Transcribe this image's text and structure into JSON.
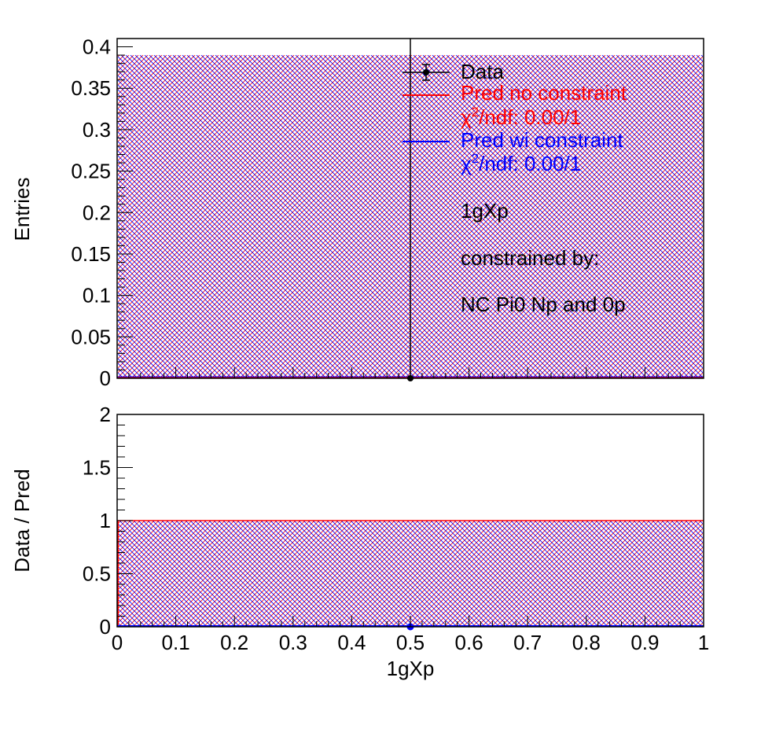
{
  "chart_data": [
    {
      "panel": "top",
      "type": "bar",
      "xlabel": "",
      "ylabel": "Entries",
      "xlim": [
        0,
        1
      ],
      "ylim": [
        0,
        0.41
      ],
      "yticks": [
        0,
        0.05,
        0.1,
        0.15,
        0.2,
        0.25,
        0.3,
        0.35,
        0.4
      ],
      "ytick_labels": [
        "0",
        "0.05",
        "0.1",
        "0.15",
        "0.2",
        "0.25",
        "0.3",
        "0.35",
        "0.4"
      ],
      "hatch_band": {
        "lower": 0,
        "upper": 0.39
      },
      "series": [
        {
          "name": "Data",
          "x": [
            0.5
          ],
          "y": [
            0
          ],
          "yerr_upper": [
            0.41
          ],
          "color": "#000000",
          "style": "points"
        },
        {
          "name": "Pred no constraint",
          "x": [
            0.5
          ],
          "y": [
            0
          ],
          "color": "#ff0000",
          "style": "step"
        },
        {
          "name": "Pred wi constraint",
          "x": [
            0.5
          ],
          "y": [
            0
          ],
          "color": "#0000ff",
          "style": "step"
        }
      ],
      "legend": {
        "placement": "top-right",
        "entries": [
          {
            "label": "Data",
            "color": "#000000",
            "marker": "point-errorbar"
          },
          {
            "label": "Pred no constraint",
            "color": "#ff0000",
            "marker": "line"
          },
          {
            "chi_prefix": "χ",
            "chi_sup": "2",
            "chi_rest": "/ndf: 0.00/1",
            "color": "#ff0000"
          },
          {
            "label": "Pred wi constraint",
            "color": "#0000ff",
            "marker": "line"
          },
          {
            "chi_prefix": "χ",
            "chi_sup": "2",
            "chi_rest": "/ndf: 0.00/1",
            "color": "#0000ff"
          }
        ],
        "notes": [
          "1gXp",
          "constrained by:",
          "NC Pi0 Np and 0p"
        ]
      }
    },
    {
      "panel": "bottom",
      "type": "bar",
      "xlabel": "1gXp",
      "ylabel": "Data / Pred",
      "xlim": [
        0,
        1
      ],
      "ylim": [
        0,
        2
      ],
      "xticks": [
        0,
        0.1,
        0.2,
        0.3,
        0.4,
        0.5,
        0.6,
        0.7,
        0.8,
        0.9,
        1
      ],
      "xtick_labels": [
        "0",
        "0.1",
        "0.2",
        "0.3",
        "0.4",
        "0.5",
        "0.6",
        "0.7",
        "0.8",
        "0.9",
        "1"
      ],
      "yticks": [
        0,
        0.5,
        1,
        1.5,
        2
      ],
      "ytick_labels": [
        "0",
        "0.5",
        "1",
        "1.5",
        "2"
      ],
      "hatch_band": {
        "lower": 0,
        "upper": 1
      },
      "reference_line": 1,
      "series": [
        {
          "name": "Data / Pred",
          "x": [
            0.5
          ],
          "y": [
            0
          ],
          "color": "#0000ff",
          "style": "points"
        }
      ]
    }
  ]
}
